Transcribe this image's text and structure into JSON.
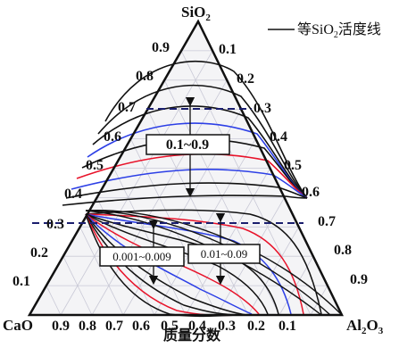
{
  "diagram": {
    "type": "ternary-phase-diagram",
    "vertices": {
      "top": {
        "base": "SiO",
        "sub": "2"
      },
      "left": {
        "base": "CaO",
        "sub": ""
      },
      "right": {
        "base": "Al",
        "sub": "2",
        "tail": "O",
        "sub2": "3"
      }
    },
    "legend": {
      "prefix": "等SiO",
      "sub": "2",
      "suffix": "活度线"
    },
    "axis_title": "质量分数",
    "ticks": {
      "bottom": [
        "0.9",
        "0.8",
        "0.7",
        "0.6",
        "0.5",
        "0.4",
        "0.3",
        "0.2",
        "0.1"
      ],
      "left": [
        "0.9",
        "0.8",
        "0.7",
        "0.6",
        "0.5",
        "0.4",
        "0.3",
        "0.2",
        "0.1"
      ],
      "right": [
        "0.1",
        "0.2",
        "0.3",
        "0.4",
        "0.5",
        "0.6",
        "0.7",
        "0.8",
        "0.9"
      ]
    },
    "annotations": [
      {
        "id": "range-high",
        "text": "0.1~0.9"
      },
      {
        "id": "range-low",
        "text": "0.001~0.009"
      },
      {
        "id": "range-mid",
        "text": "0.01~0.09"
      }
    ],
    "colors": {
      "black": "#111111",
      "red": "#e8132a",
      "blue": "#2c3fe6",
      "grid": "#c9c9d6",
      "dash": "#1a1e6e"
    }
  }
}
